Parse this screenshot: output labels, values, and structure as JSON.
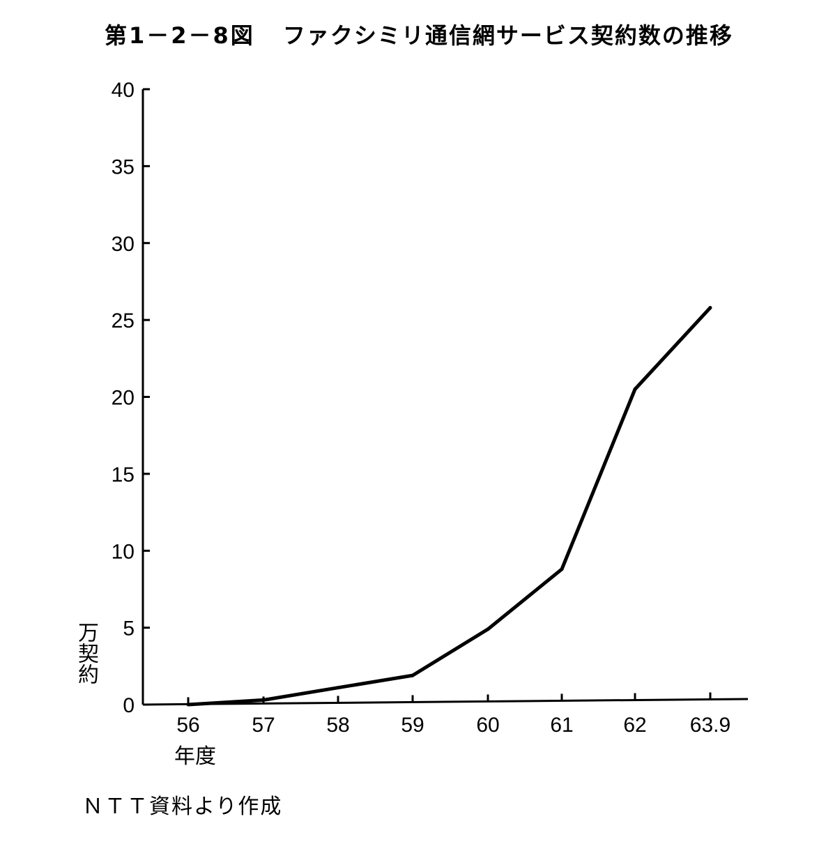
{
  "figure": {
    "title_number": "第1－2－8図",
    "title_text": "ファクシミリ通信網サービス契約数の推移",
    "source_note": "ＮＴＴ資料より作成"
  },
  "chart_data": {
    "type": "line",
    "title": "第1－2－8図　ファクシミリ通信網サービス契約数の推移",
    "ylabel": "万契約",
    "xlabel": "年度",
    "categories": [
      "56",
      "57",
      "58",
      "59",
      "60",
      "61",
      "62",
      "63.9"
    ],
    "series": [
      {
        "values": [
          0,
          0.3,
          1.1,
          1.9,
          4.9,
          8.8,
          20.5,
          25.8
        ]
      }
    ],
    "yticks": [
      0,
      5,
      10,
      15,
      20,
      25,
      30,
      35,
      40
    ],
    "ylim": [
      0,
      40
    ],
    "grid": false,
    "legend": "none",
    "line_color": "#000000"
  }
}
